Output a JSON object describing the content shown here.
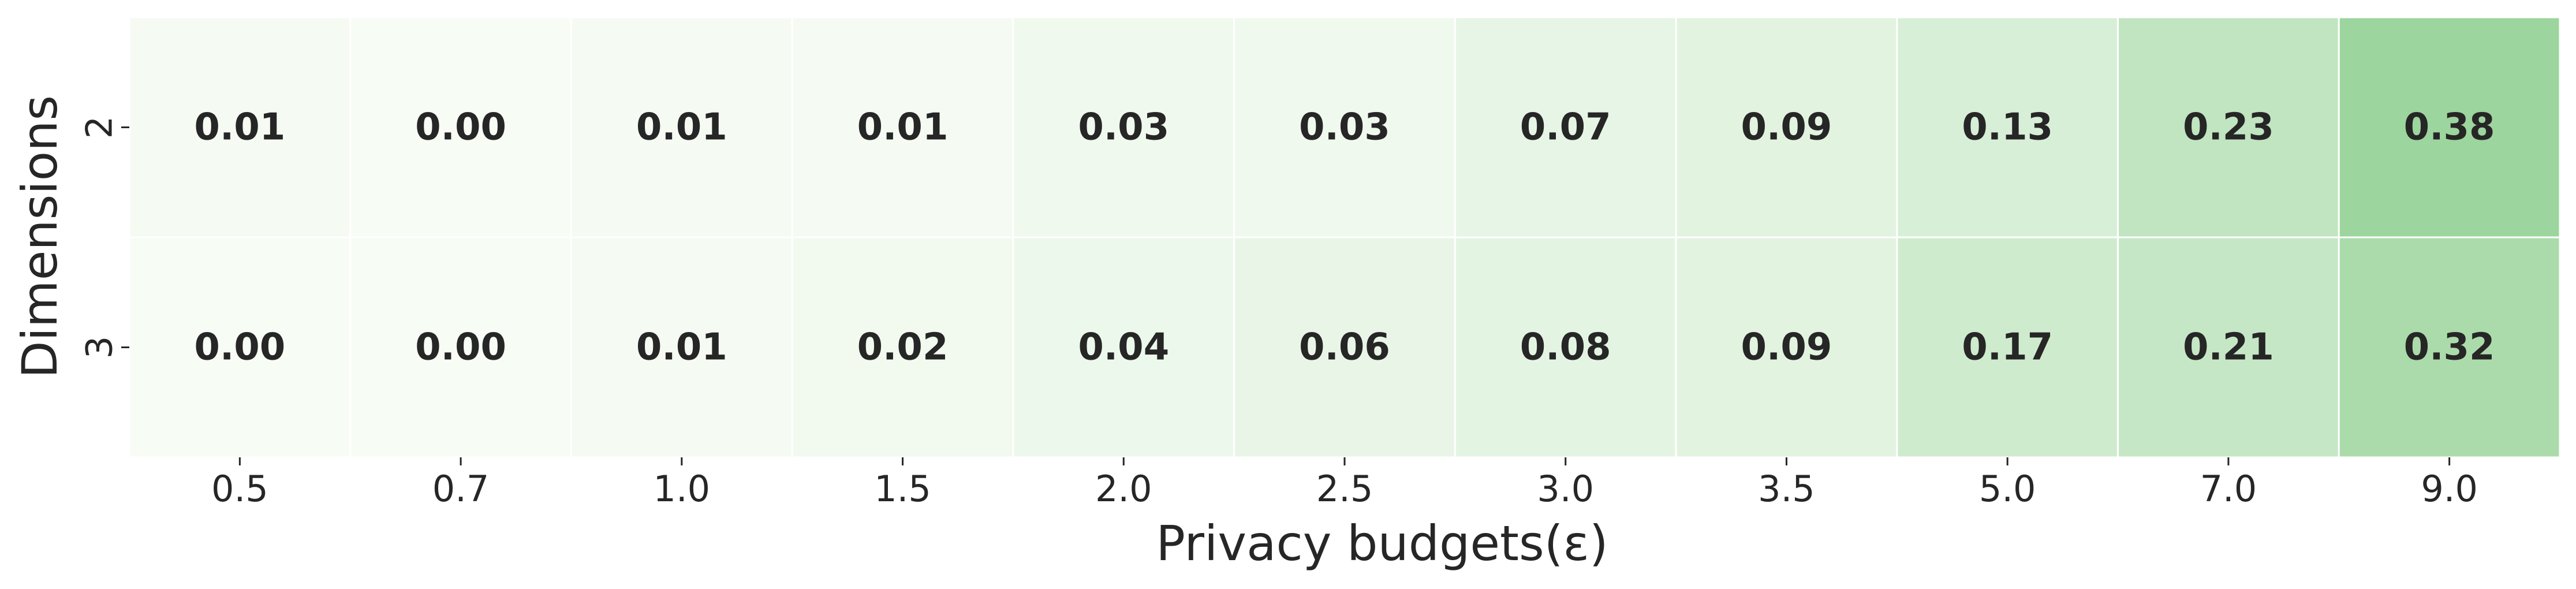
{
  "chart_data": {
    "type": "heatmap",
    "xlabel": "Privacy budgets(ε)",
    "ylabel": "Dimensions",
    "x_categories": [
      "0.5",
      "0.7",
      "1.0",
      "1.5",
      "2.0",
      "2.5",
      "3.0",
      "3.5",
      "5.0",
      "7.0",
      "9.0"
    ],
    "y_categories": [
      "2",
      "3"
    ],
    "values": [
      [
        0.01,
        0.0,
        0.01,
        0.01,
        0.03,
        0.03,
        0.07,
        0.09,
        0.13,
        0.23,
        0.38
      ],
      [
        0.0,
        0.0,
        0.01,
        0.02,
        0.04,
        0.06,
        0.08,
        0.09,
        0.17,
        0.21,
        0.32
      ]
    ],
    "cell_labels": [
      [
        "0.01",
        "0.00",
        "0.01",
        "0.01",
        "0.03",
        "0.03",
        "0.07",
        "0.09",
        "0.13",
        "0.23",
        "0.38"
      ],
      [
        "0.00",
        "0.00",
        "0.01",
        "0.02",
        "0.04",
        "0.06",
        "0.08",
        "0.09",
        "0.17",
        "0.21",
        "0.32"
      ]
    ],
    "colormap": "Greens",
    "color_low": "#f7fcf5",
    "color_high": "#74c476",
    "color_range": [
      0,
      0.55
    ],
    "grid": false,
    "legend": "none"
  }
}
